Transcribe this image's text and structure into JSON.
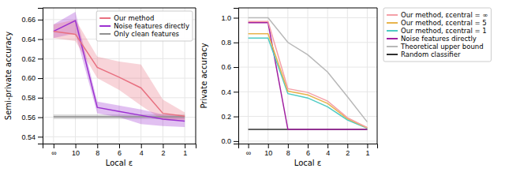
{
  "chart_data": [
    {
      "type": "line",
      "xlabel": "Local ε",
      "ylabel": "Semi-private accuracy",
      "categories": [
        "∞",
        "10",
        "8",
        "6",
        "4",
        "2",
        "1"
      ],
      "ylim": [
        0.533,
        0.672
      ],
      "yticks": [
        0.54,
        0.56,
        0.58,
        {
          "value": 0.6,
          "label": "0.60"
        },
        0.62,
        0.64,
        0.66
      ],
      "grid": true,
      "legend": "upper right",
      "series": [
        {
          "name": "Our method",
          "color": "#e87080",
          "values": [
            0.648,
            0.645,
            0.611,
            0.601,
            0.59,
            0.564,
            0.561
          ],
          "lower": [
            0.641,
            0.638,
            0.6,
            0.588,
            0.572,
            0.557,
            0.557
          ],
          "upper": [
            0.655,
            0.66,
            0.622,
            0.617,
            0.614,
            0.578,
            0.565
          ]
        },
        {
          "name": "Noise features directly",
          "color": "#9b30d0",
          "values": [
            0.648,
            0.659,
            0.57,
            0.566,
            0.562,
            0.558,
            0.556
          ],
          "lower": [
            0.641,
            0.646,
            0.564,
            0.56,
            0.553,
            0.551,
            0.55
          ],
          "upper": [
            0.655,
            0.668,
            0.576,
            0.572,
            0.568,
            0.563,
            0.561
          ]
        },
        {
          "name": "Only clean features",
          "color": "#909090",
          "values": [
            0.5605,
            0.5605,
            0.5605,
            0.5605,
            0.5605,
            0.5605,
            0.5605
          ],
          "lower": [
            0.558,
            0.558,
            0.558,
            0.558,
            0.558,
            0.558,
            0.558
          ],
          "upper": [
            0.563,
            0.563,
            0.563,
            0.563,
            0.563,
            0.563,
            0.563
          ]
        }
      ]
    },
    {
      "type": "line",
      "xlabel": "Local ε",
      "ylabel": "Private accuracy",
      "categories": [
        "∞",
        "10",
        "8",
        "6",
        "4",
        "2",
        "1"
      ],
      "ylim": [
        -0.02,
        1.08
      ],
      "yticks": [
        {
          "value": 0.0,
          "label": "0.0"
        },
        0.2,
        0.4,
        0.6,
        0.8,
        {
          "value": 1.0,
          "label": "1.0"
        }
      ],
      "grid": true,
      "legend": "right",
      "series": [
        {
          "name": "Our method, εcentral = ∞",
          "color": "#f4a0a8",
          "values": [
            0.97,
            0.97,
            0.425,
            0.395,
            0.325,
            0.19,
            0.11
          ]
        },
        {
          "name": "Our method, εcentral = 5",
          "color": "#e8b44c",
          "values": [
            0.87,
            0.87,
            0.405,
            0.375,
            0.305,
            0.182,
            0.108
          ]
        },
        {
          "name": "Our method, εcentral = 1",
          "color": "#4ecbc4",
          "values": [
            0.835,
            0.835,
            0.385,
            0.35,
            0.278,
            0.172,
            0.105
          ]
        },
        {
          "name": "Noise features directly",
          "color": "#a020a0",
          "values": [
            0.96,
            0.96,
            0.095,
            0.095,
            0.095,
            0.095,
            0.095
          ]
        },
        {
          "name": "Theoretical upper bound",
          "color": "#b8b8b8",
          "values": [
            1.0,
            1.0,
            0.8,
            0.7,
            0.56,
            0.36,
            0.155
          ]
        },
        {
          "name": "Random classifier",
          "color": "#303030",
          "values": [
            0.095,
            0.095,
            0.095,
            0.095,
            0.095,
            0.095,
            0.095
          ]
        }
      ]
    }
  ]
}
